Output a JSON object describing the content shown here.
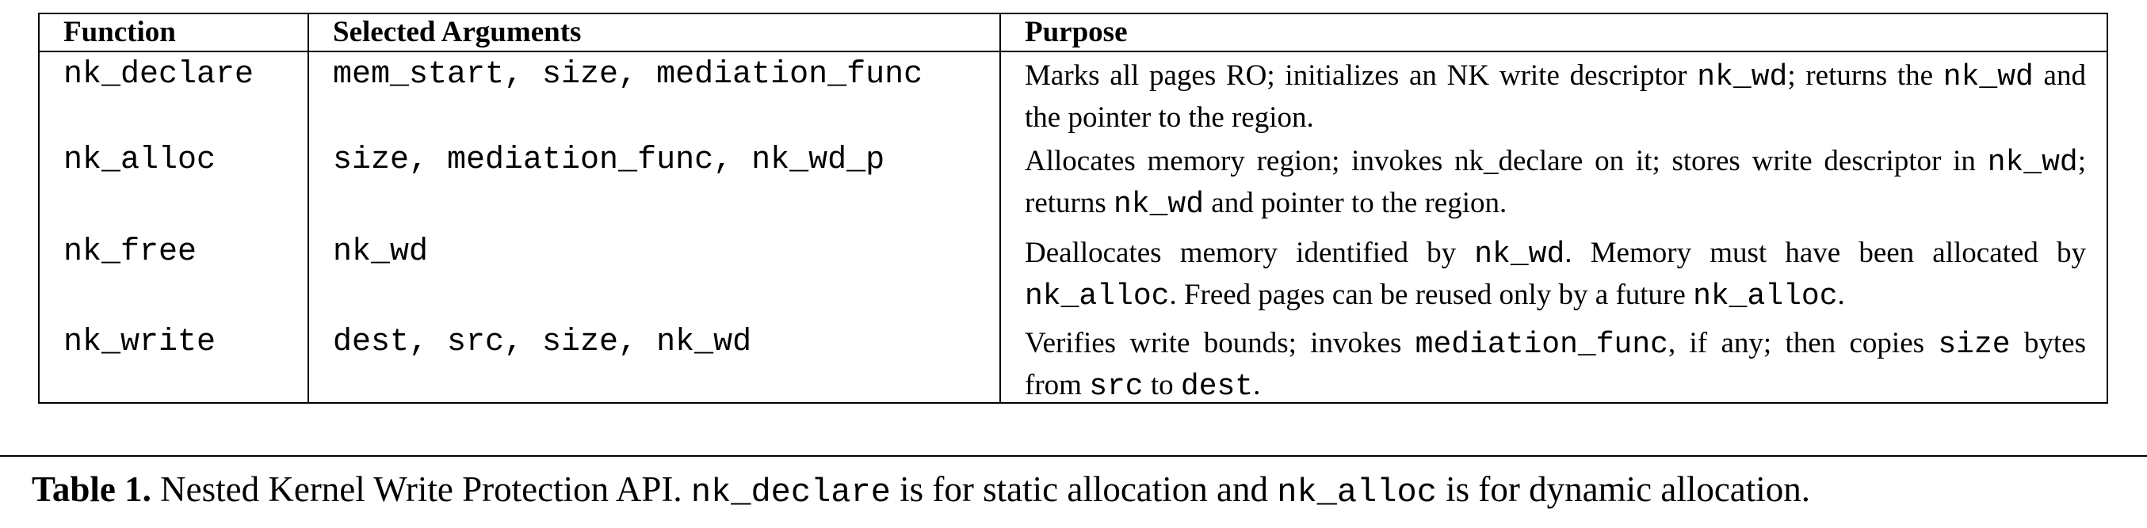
{
  "table": {
    "headers": {
      "function": "Function",
      "arguments": "Selected Arguments",
      "purpose": "Purpose"
    },
    "rows": [
      {
        "function": "nk_declare",
        "arguments": "mem_start, size, mediation_func",
        "purpose": [
          {
            "text": "Marks all pages RO; initializes an NK write descriptor ",
            "mono": false
          },
          {
            "text": "nk_wd",
            "mono": true
          },
          {
            "text": "; returns the ",
            "mono": false
          },
          {
            "text": "nk_wd",
            "mono": true
          },
          {
            "text": " and the pointer to the region.",
            "mono": false
          }
        ]
      },
      {
        "function": "nk_alloc",
        "arguments": "size, mediation_func, nk_wd_p",
        "purpose": [
          {
            "text": "Allocates memory region; invokes nk_declare on it; stores write descriptor in ",
            "mono": false
          },
          {
            "text": "nk_wd",
            "mono": true
          },
          {
            "text": "; returns ",
            "mono": false
          },
          {
            "text": "nk_wd",
            "mono": true
          },
          {
            "text": " and pointer to the region.",
            "mono": false
          }
        ]
      },
      {
        "function": "nk_free",
        "arguments": "nk_wd",
        "purpose": [
          {
            "text": "Deallocates memory identified by ",
            "mono": false
          },
          {
            "text": "nk_wd",
            "mono": true
          },
          {
            "text": ". Memory must have been allocated by ",
            "mono": false
          },
          {
            "text": "nk_alloc",
            "mono": true
          },
          {
            "text": ". Freed pages can be reused only by a future ",
            "mono": false
          },
          {
            "text": "nk_alloc",
            "mono": true
          },
          {
            "text": ".",
            "mono": false
          }
        ]
      },
      {
        "function": "nk_write",
        "arguments": "dest, src, size, nk_wd",
        "purpose": [
          {
            "text": "Verifies write bounds; invokes ",
            "mono": false
          },
          {
            "text": "mediation_func",
            "mono": true
          },
          {
            "text": ", if any; then copies ",
            "mono": false
          },
          {
            "text": "size",
            "mono": true
          },
          {
            "text": " bytes from ",
            "mono": false
          },
          {
            "text": "src",
            "mono": true
          },
          {
            "text": " to ",
            "mono": false
          },
          {
            "text": "dest",
            "mono": true
          },
          {
            "text": ".",
            "mono": false
          }
        ]
      }
    ]
  },
  "caption": {
    "label": "Table 1.",
    "parts": [
      {
        "text": " Nested Kernel Write Protection API. ",
        "mono": false
      },
      {
        "text": "nk_declare",
        "mono": true
      },
      {
        "text": " is for static allocation and ",
        "mono": false
      },
      {
        "text": "nk_alloc",
        "mono": true
      },
      {
        "text": " is for dynamic allocation.",
        "mono": false
      }
    ]
  }
}
